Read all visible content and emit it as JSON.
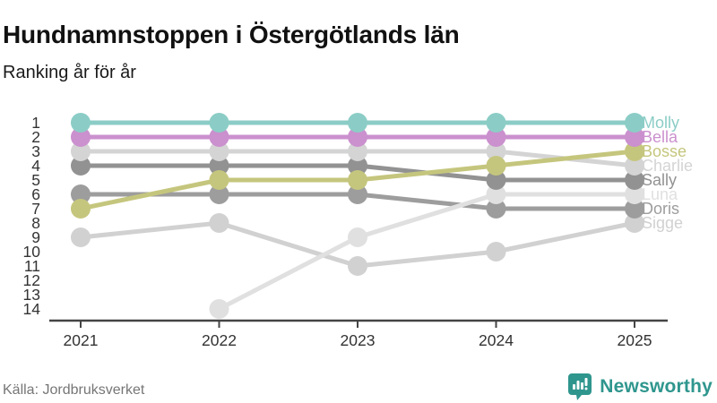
{
  "header": {
    "title": "Hundnamnstoppen i Östergötlands län",
    "subtitle": "Ranking år för år"
  },
  "footer": {
    "source": "Källa: Jordbruksverket",
    "brand": "Newsworthy",
    "brand_color": "#2f968e"
  },
  "chart_data": {
    "type": "line",
    "variant": "bump-ranking",
    "title": "Hundnamnstoppen i Östergötlands län",
    "subtitle": "Ranking år för år",
    "x": [
      "2021",
      "2022",
      "2023",
      "2024",
      "2025"
    ],
    "xlabel": "",
    "ylabel": "",
    "y_ticks": [
      1,
      2,
      3,
      4,
      5,
      6,
      7,
      8,
      9,
      10,
      11,
      12,
      13,
      14
    ],
    "y_axis_inverted": true,
    "ylim": [
      1,
      14
    ],
    "grid": false,
    "legend_position": "right",
    "axis_color": "#444444",
    "tick_label_color": "#333333",
    "series": [
      {
        "name": "Molly",
        "color": "#8bcdc6",
        "ranks": [
          1,
          1,
          1,
          1,
          1
        ]
      },
      {
        "name": "Bella",
        "color": "#cb90ce",
        "ranks": [
          2,
          2,
          2,
          2,
          2
        ]
      },
      {
        "name": "Bosse",
        "color": "#c5c67d",
        "ranks": [
          7,
          5,
          5,
          4,
          3
        ]
      },
      {
        "name": "Charlie",
        "color": "#d4d4d4",
        "ranks": [
          3,
          3,
          3,
          3,
          4
        ]
      },
      {
        "name": "Sally",
        "color": "#929292",
        "ranks": [
          4,
          4,
          4,
          5,
          5
        ]
      },
      {
        "name": "Luna",
        "color": "#e0e0e0",
        "ranks": [
          null,
          14,
          9,
          6,
          6
        ]
      },
      {
        "name": "Doris",
        "color": "#9d9d9d",
        "ranks": [
          6,
          6,
          6,
          7,
          7
        ]
      },
      {
        "name": "Sigge",
        "color": "#d1d1d1",
        "ranks": [
          9,
          8,
          11,
          10,
          8
        ]
      }
    ]
  }
}
